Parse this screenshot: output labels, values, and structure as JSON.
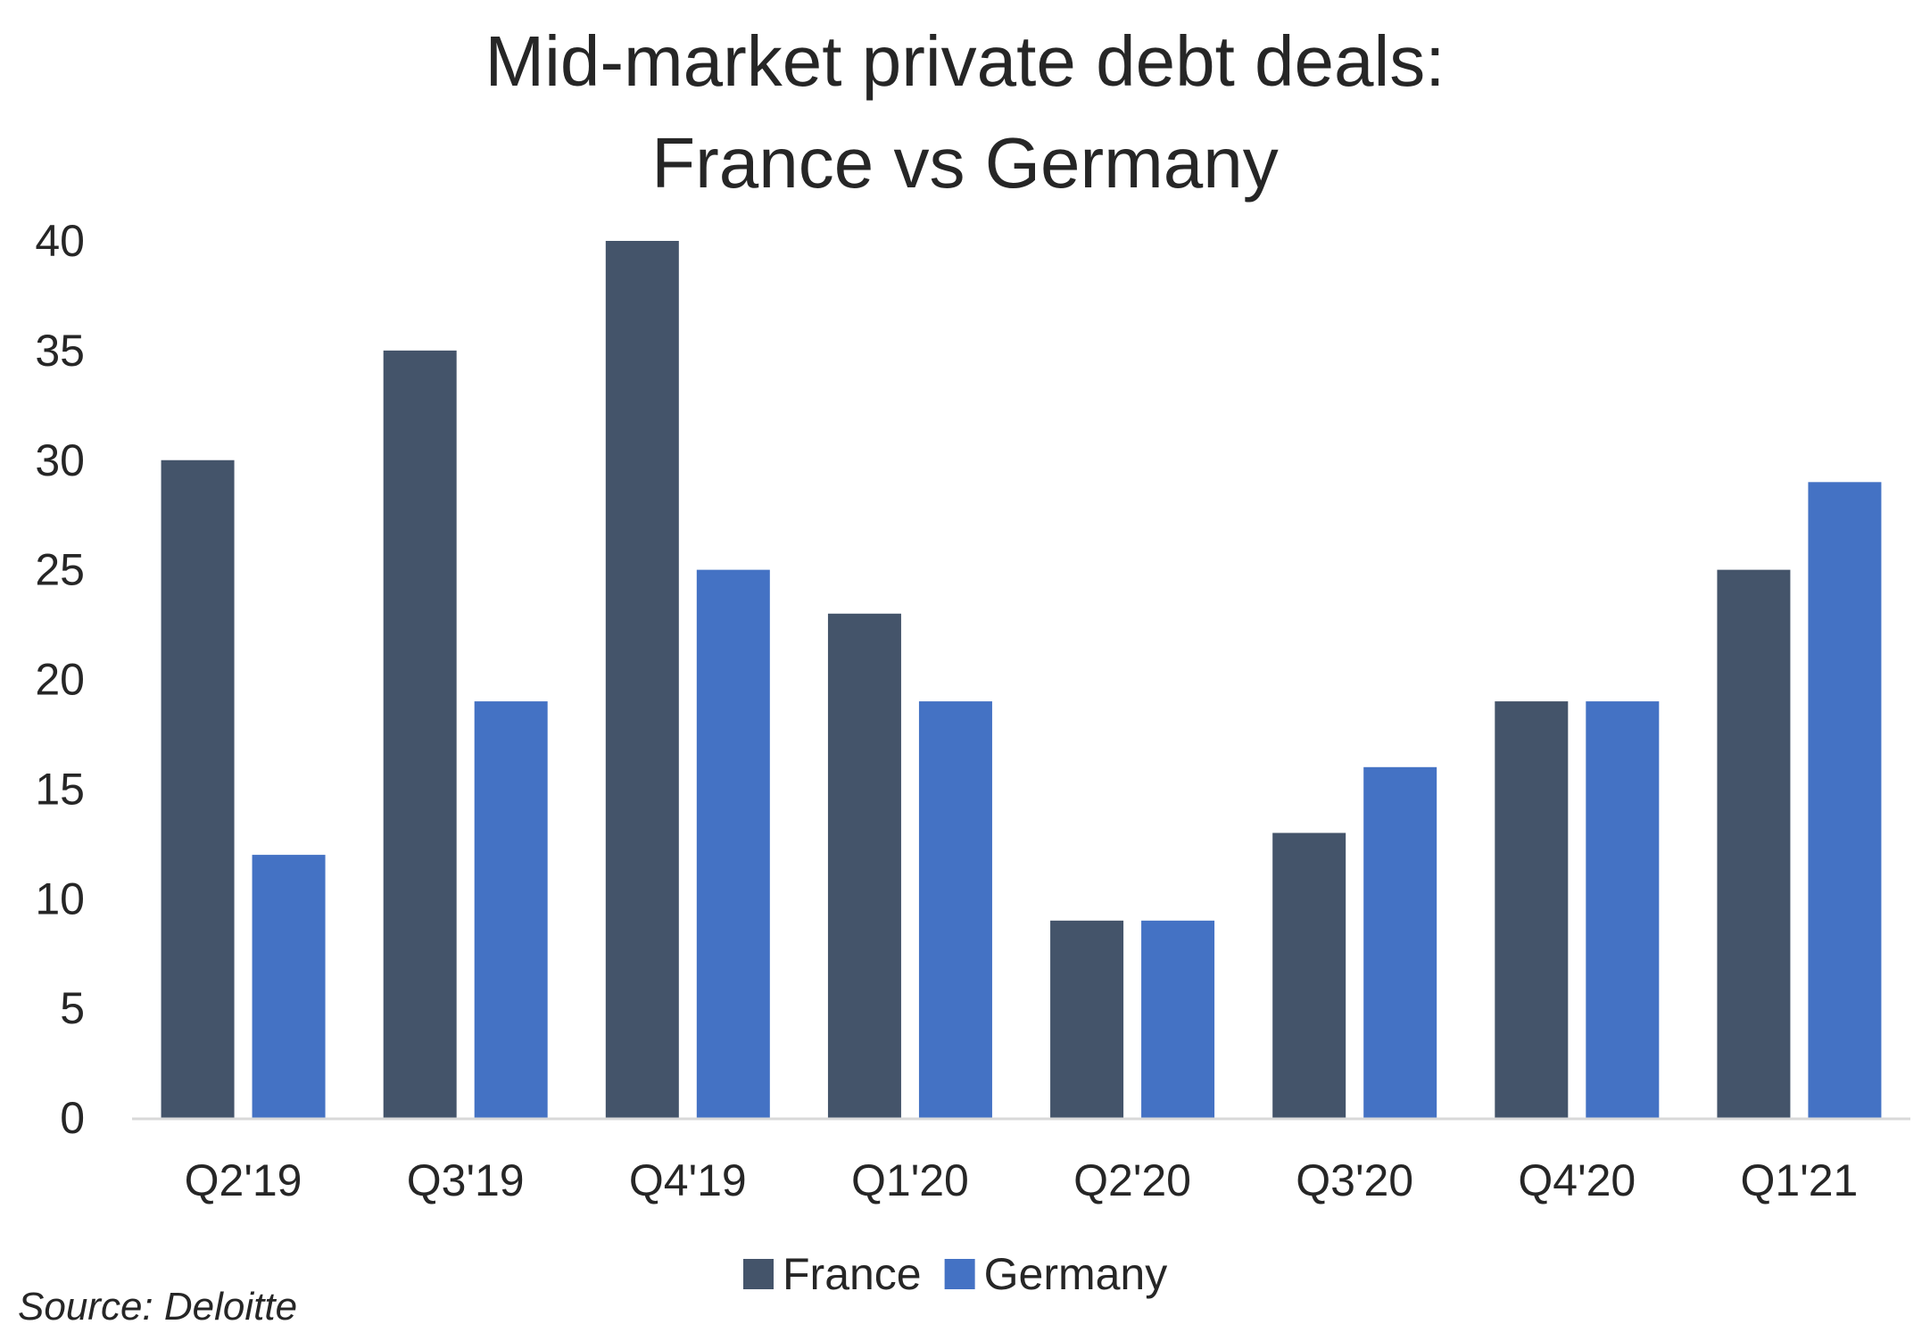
{
  "chart_data": {
    "type": "bar",
    "title_lines": [
      "Mid-market private debt deals:",
      "France vs Germany"
    ],
    "categories": [
      "Q2'19",
      "Q3'19",
      "Q4'19",
      "Q1'20",
      "Q2'20",
      "Q3'20",
      "Q4'20",
      "Q1'21"
    ],
    "series": [
      {
        "name": "France",
        "color": "#44546A",
        "values": [
          30,
          35,
          40,
          23,
          9,
          13,
          19,
          25
        ]
      },
      {
        "name": "Germany",
        "color": "#4472C4",
        "values": [
          12,
          19,
          25,
          19,
          9,
          16,
          19,
          29
        ]
      }
    ],
    "ylim": [
      0,
      40
    ],
    "yticks": [
      0,
      5,
      10,
      15,
      20,
      25,
      30,
      35,
      40
    ],
    "grid": false,
    "legend_position": "bottom",
    "source": "Source: Deloitte"
  }
}
